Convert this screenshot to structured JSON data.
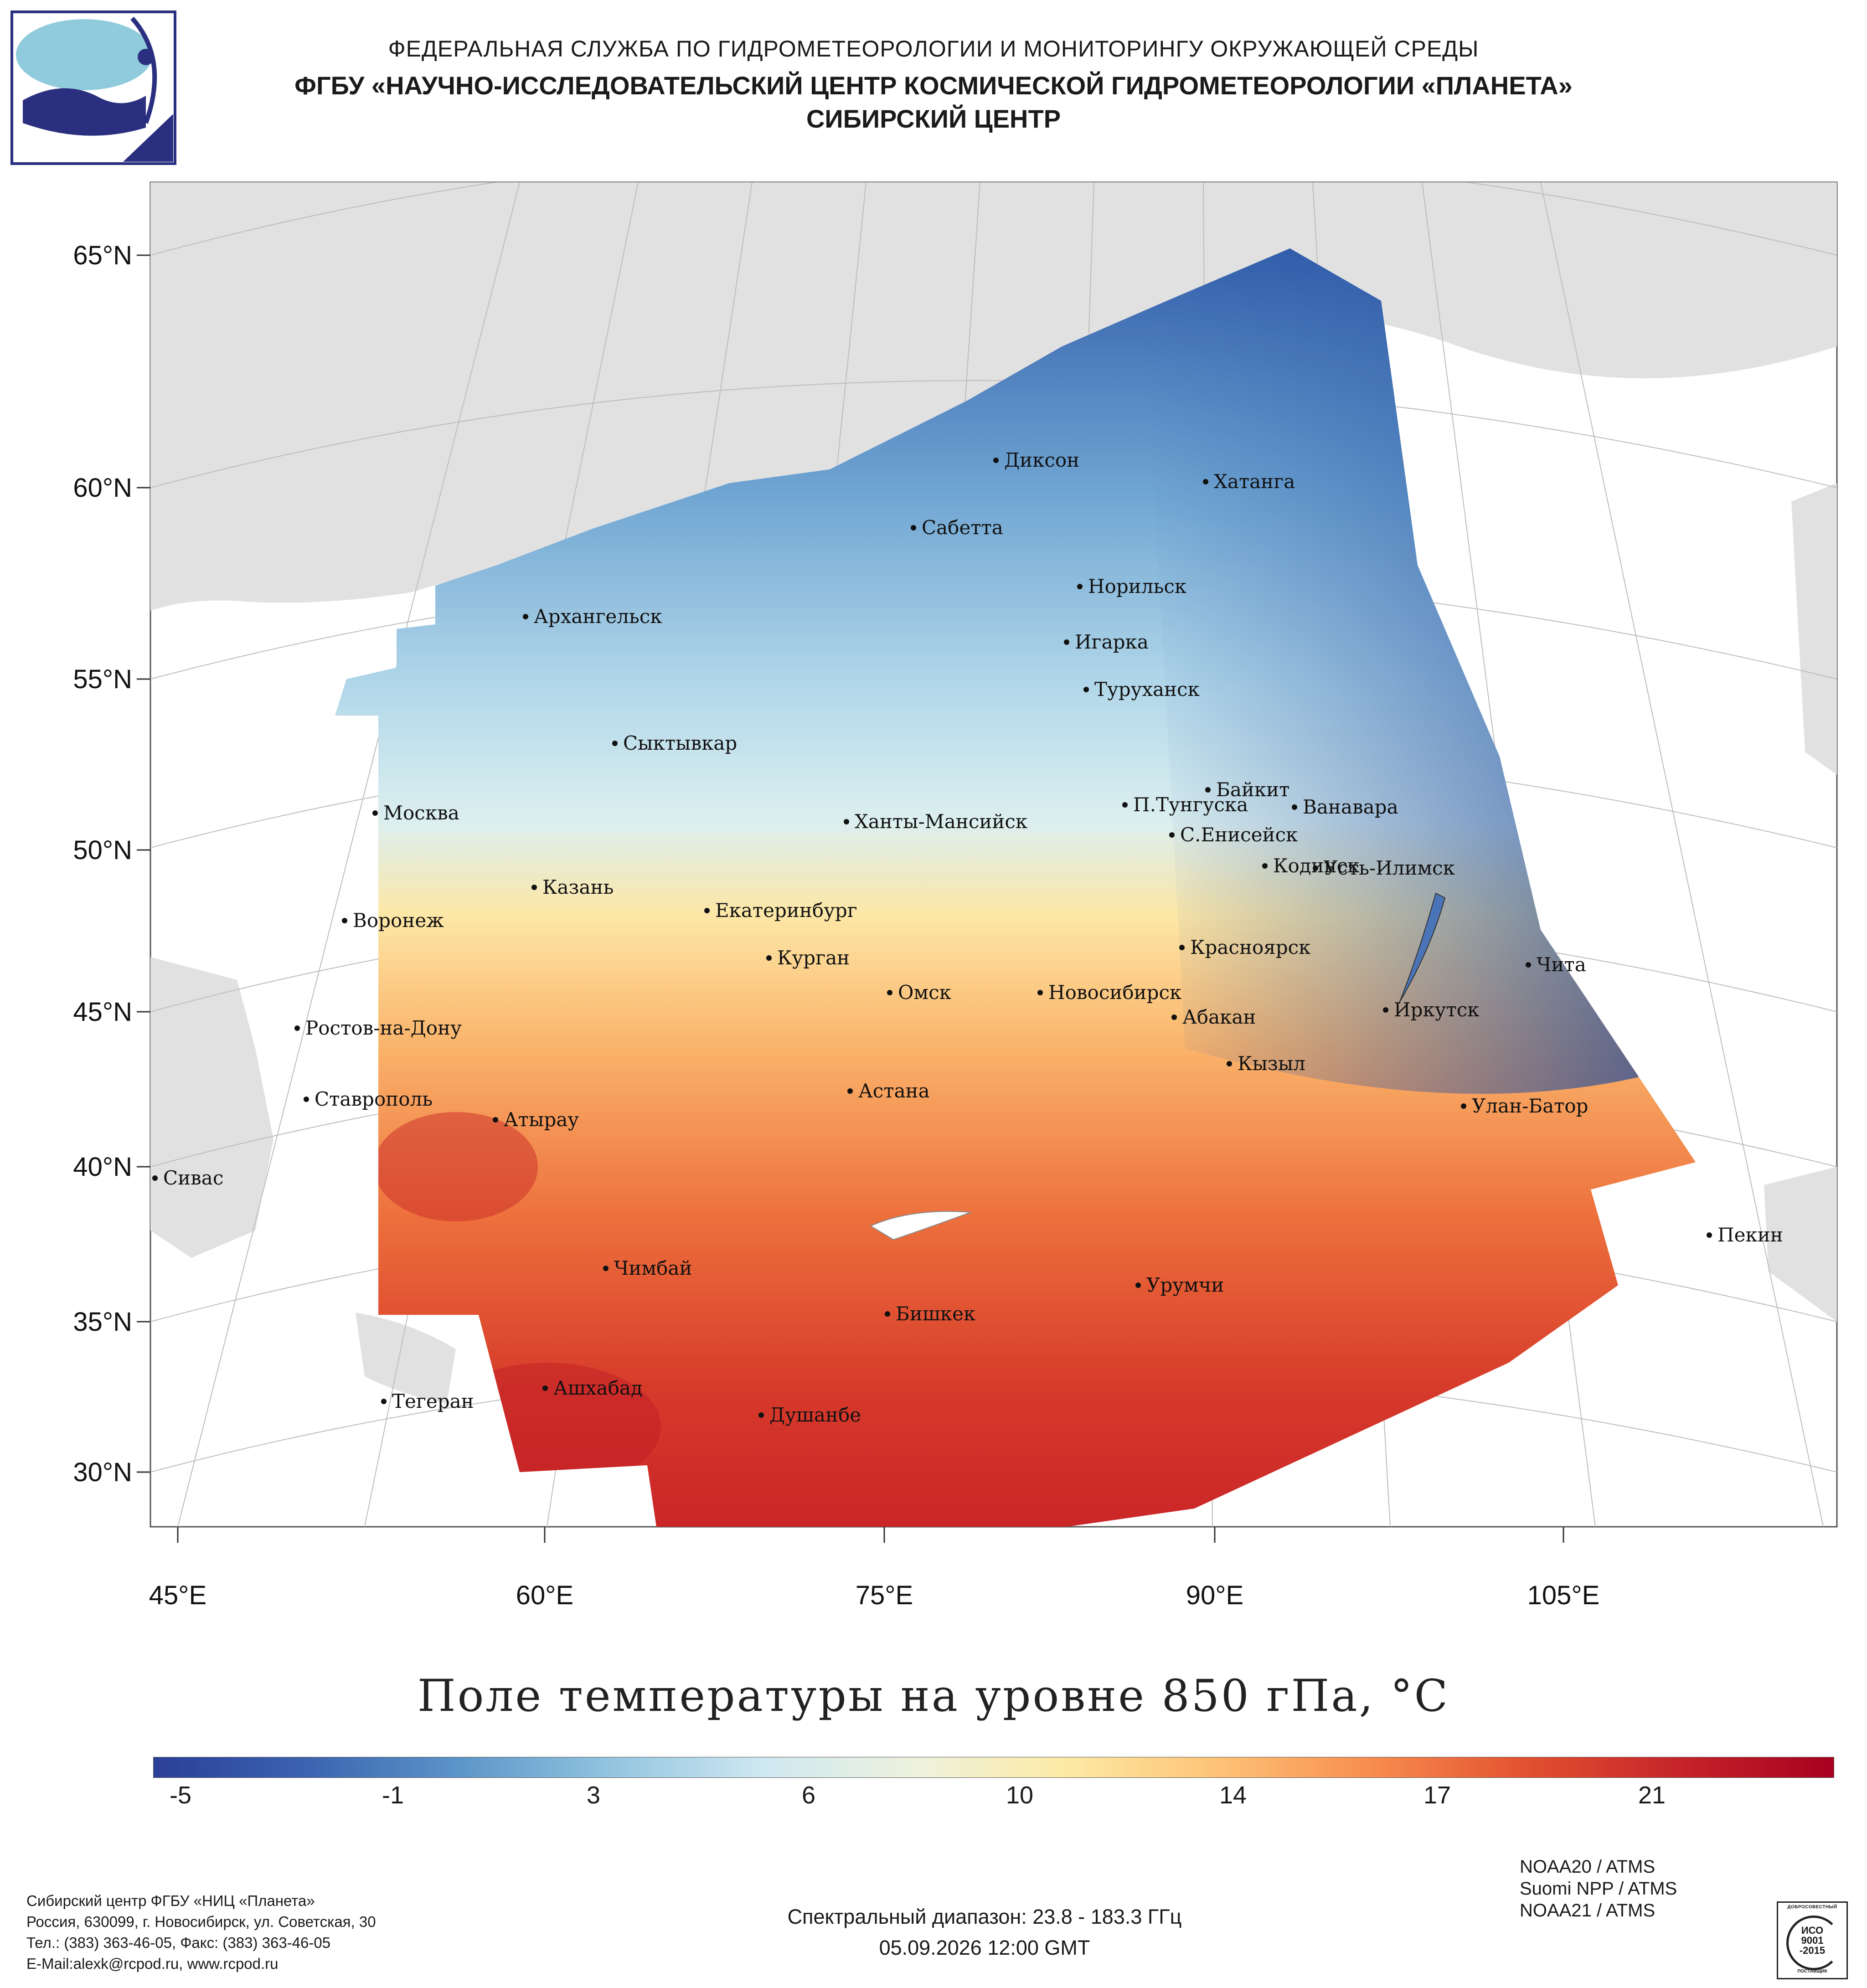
{
  "header": {
    "line1": "ФЕДЕРАЛЬНАЯ СЛУЖБА ПО ГИДРОМЕТЕОРОЛОГИИ И МОНИТОРИНГУ ОКРУЖАЮЩЕЙ СРЕДЫ",
    "line2": "ФГБУ «НАУЧНО-ИССЛЕДОВАТЕЛЬСКИЙ ЦЕНТР КОСМИЧЕСКОЙ ГИДРОМЕТЕОРОЛОГИИ «ПЛАНЕТА»",
    "line3": "СИБИРСКИЙ ЦЕНТР"
  },
  "map": {
    "lat_labels": [
      "65°N",
      "60°N",
      "55°N",
      "50°N",
      "45°N",
      "40°N",
      "35°N",
      "30°N"
    ],
    "lon_labels": [
      "45°E",
      "60°E",
      "75°E",
      "90°E",
      "105°E"
    ],
    "cities": [
      "Диксон",
      "Хатанга",
      "Сабетта",
      "Норильск",
      "Архангельск",
      "Игарка",
      "Туруханск",
      "Сыктывкар",
      "Байкит",
      "П.Тунгуска",
      "Ванавара",
      "Москва",
      "Ханты-Мансийск",
      "С.Енисейск",
      "Кодинск",
      "Усть-Илимск",
      "Казань",
      "Екатеринбург",
      "Воронеж",
      "Красноярск",
      "Курган",
      "Чита",
      "Омск",
      "Новосибирск",
      "Иркутск",
      "Абакан",
      "Ростов-на-Дону",
      "Кызыл",
      "Астана",
      "Ставрополь",
      "Улан-Батор",
      "Атырау",
      "Сивас",
      "Пекин",
      "Чимбай",
      "Урумчи",
      "Бишкек",
      "Ашхабад",
      "Тегеран",
      "Душанбе"
    ]
  },
  "title": "Поле температуры на уровне 850 гПа, °C",
  "colorbar": {
    "ticks": [
      "-5",
      "-1",
      "3",
      "6",
      "10",
      "14",
      "17",
      "21"
    ],
    "colors": [
      "#2b3f99",
      "#3b63b0",
      "#5b95c8",
      "#93c5e0",
      "#cfe8f1",
      "#eef2dd",
      "#fde9a3",
      "#fdc175",
      "#f78b4e",
      "#e2502f",
      "#c4242a",
      "#a8001f"
    ]
  },
  "footer": {
    "org_line1": "Сибирский центр ФГБУ «НИЦ «Планета»",
    "org_line2": "Россия, 630099, г. Новосибирск, ул. Советская, 30",
    "org_line3": "Тел.: (383) 363-46-05, Факс: (383) 363-46-05",
    "org_line4": "E-Mail:alexk@rcpod.ru, www.rcpod.ru",
    "spectral": "Спектральный диапазон: 23.8 - 183.3 ГГц",
    "datetime": "05.09.2026 12:00 GMT",
    "satellites": [
      "NOAA20 / ATMS",
      "Suomi NPP / ATMS",
      "NOAA21 / ATMS"
    ],
    "badge_top": "ДОБРОСОВЕСТНЫЙ",
    "badge_line1": "ИСО",
    "badge_line2": "9001",
    "badge_line3": "-2015",
    "badge_bottom": "ПОСТАВЩИК"
  }
}
